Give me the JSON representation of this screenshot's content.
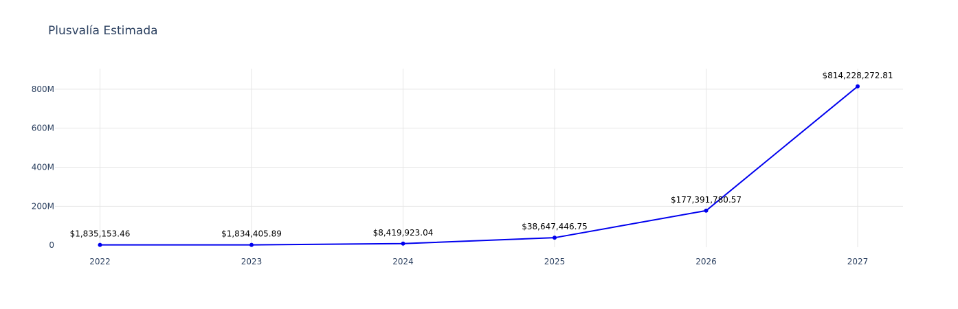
{
  "chart_data": {
    "type": "line",
    "title": "Plusvalía Estimada",
    "xlabel": "",
    "ylabel": "",
    "x": [
      "2022",
      "2023",
      "2024",
      "2025",
      "2026",
      "2027"
    ],
    "values": [
      1835153.46,
      1834405.89,
      8419923.04,
      38647446.75,
      177391780.57,
      814228272.81
    ],
    "data_labels": [
      "$1,835,153.46",
      "$1,834,405.89",
      "$8,419,923.04",
      "$38,647,446.75",
      "$177,391,780.57",
      "$814,228,272.81"
    ],
    "y_ticks": [
      0,
      200000000,
      400000000,
      600000000,
      800000000
    ],
    "y_tick_labels": [
      "0",
      "200M",
      "400M",
      "600M",
      "800M"
    ],
    "ylim": [
      -10000000,
      905000000
    ],
    "grid": true,
    "line_color": "#0000ee",
    "marker_color": "#0000ee"
  }
}
